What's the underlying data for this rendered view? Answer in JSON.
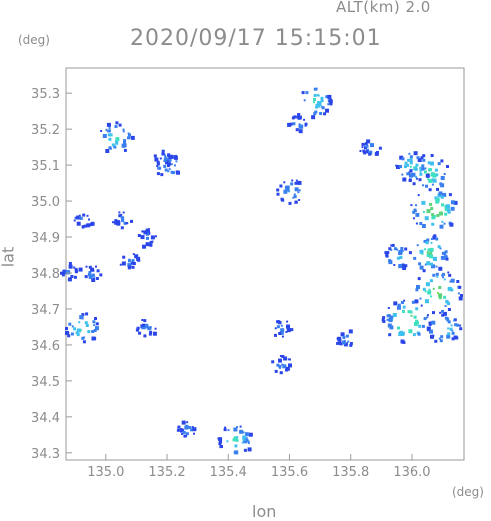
{
  "header": {
    "altitude": "ALT(km) 2.0",
    "timestamp": "2020/09/17 15:15:01"
  },
  "axes": {
    "lat_unit": "(deg)",
    "lon_unit": "(deg)",
    "ylabel": "lat",
    "xlabel": "lon"
  },
  "chart_data": {
    "type": "heatmap",
    "x_ticks": [
      "135.0",
      "135.2",
      "135.4",
      "135.6",
      "135.8",
      "136.0"
    ],
    "y_ticks": [
      "35.3",
      "35.2",
      "35.1",
      "35.0",
      "34.9",
      "34.8",
      "34.7",
      "34.6",
      "34.5",
      "34.4",
      "34.3"
    ],
    "xlim": [
      134.87,
      136.17
    ],
    "ylim": [
      34.28,
      35.37
    ],
    "grid": false,
    "colormap": [
      "#2a46e8",
      "#3a7ff0",
      "#3fc0ee",
      "#3fe0c0",
      "#5cd27a",
      "#7fe05a"
    ],
    "echoes": [
      {
        "lon": 134.92,
        "lat": 34.95,
        "intensity": 1
      },
      {
        "lon": 134.88,
        "lat": 34.81,
        "intensity": 1
      },
      {
        "lon": 134.95,
        "lat": 34.8,
        "intensity": 1
      },
      {
        "lon": 134.92,
        "lat": 34.65,
        "intensity": 3
      },
      {
        "lon": 135.03,
        "lat": 35.18,
        "intensity": 3
      },
      {
        "lon": 135.05,
        "lat": 34.95,
        "intensity": 1
      },
      {
        "lon": 135.07,
        "lat": 34.84,
        "intensity": 1
      },
      {
        "lon": 135.13,
        "lat": 34.9,
        "intensity": 1
      },
      {
        "lon": 135.2,
        "lat": 35.1,
        "intensity": 2
      },
      {
        "lon": 135.18,
        "lat": 35.12,
        "intensity": 1
      },
      {
        "lon": 135.13,
        "lat": 34.65,
        "intensity": 1
      },
      {
        "lon": 135.26,
        "lat": 34.37,
        "intensity": 1
      },
      {
        "lon": 135.42,
        "lat": 34.34,
        "intensity": 3
      },
      {
        "lon": 135.57,
        "lat": 34.55,
        "intensity": 1
      },
      {
        "lon": 135.6,
        "lat": 35.03,
        "intensity": 2
      },
      {
        "lon": 135.62,
        "lat": 35.22,
        "intensity": 1
      },
      {
        "lon": 135.68,
        "lat": 35.28,
        "intensity": 3
      },
      {
        "lon": 135.57,
        "lat": 34.65,
        "intensity": 1
      },
      {
        "lon": 135.78,
        "lat": 34.62,
        "intensity": 1
      },
      {
        "lon": 135.86,
        "lat": 35.15,
        "intensity": 1
      },
      {
        "lon": 136.05,
        "lat": 35.08,
        "intensity": 4
      },
      {
        "lon": 136.07,
        "lat": 34.98,
        "intensity": 5
      },
      {
        "lon": 136.0,
        "lat": 35.1,
        "intensity": 3
      },
      {
        "lon": 136.05,
        "lat": 34.86,
        "intensity": 4
      },
      {
        "lon": 136.08,
        "lat": 34.75,
        "intensity": 5
      },
      {
        "lon": 135.98,
        "lat": 34.67,
        "intensity": 5
      },
      {
        "lon": 136.1,
        "lat": 34.65,
        "intensity": 3
      },
      {
        "lon": 135.95,
        "lat": 34.85,
        "intensity": 2
      }
    ]
  }
}
